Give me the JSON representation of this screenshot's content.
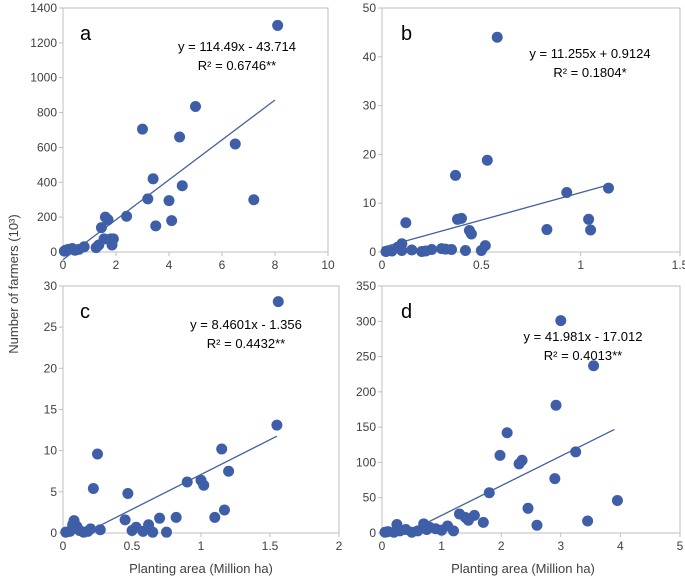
{
  "figure": {
    "ylabel": "Number of farmers (10³)",
    "xlabel": "Planting area (Million ha)"
  },
  "chart_data": [
    {
      "type": "scatter",
      "panel": "a",
      "equation": "y = 114.49x - 43.714",
      "r2": "R² = 0.6746**",
      "xlim": [
        0,
        10
      ],
      "ylim": [
        0,
        1400
      ],
      "xticks": [
        0,
        2,
        4,
        6,
        8,
        10
      ],
      "yticks": [
        0,
        200,
        400,
        600,
        800,
        1000,
        1200,
        1400
      ],
      "x": [
        0.05,
        0.1,
        0.2,
        0.35,
        0.45,
        0.6,
        0.8,
        1.25,
        1.35,
        1.45,
        1.55,
        1.6,
        1.7,
        1.8,
        1.85,
        1.9,
        2.4,
        3.0,
        3.2,
        3.4,
        3.5,
        4.0,
        4.1,
        4.4,
        4.5,
        5.0,
        6.5,
        7.2,
        8.1
      ],
      "y": [
        5,
        10,
        15,
        20,
        10,
        15,
        30,
        25,
        40,
        140,
        75,
        200,
        185,
        75,
        40,
        75,
        205,
        705,
        305,
        420,
        150,
        295,
        180,
        660,
        380,
        835,
        620,
        300,
        1300
      ],
      "fit": {
        "slope": 114.49,
        "intercept": -43.714,
        "xrange": [
          0,
          8
        ]
      },
      "point_color": "#3e5ea8",
      "line_color": "#44619e"
    },
    {
      "type": "scatter",
      "panel": "b",
      "equation": "y = 11.255x + 0.9124",
      "r2": "R² = 0.1804*",
      "xlim": [
        0,
        1.5
      ],
      "ylim": [
        0,
        50
      ],
      "xticks": [
        0,
        0.5,
        1,
        1.5
      ],
      "yticks": [
        0,
        10,
        20,
        30,
        40,
        50
      ],
      "x": [
        0.02,
        0.05,
        0.08,
        0.1,
        0.1,
        0.12,
        0.15,
        0.2,
        0.22,
        0.25,
        0.3,
        0.32,
        0.35,
        0.37,
        0.38,
        0.4,
        0.42,
        0.44,
        0.45,
        0.5,
        0.52,
        0.53,
        0.58,
        0.83,
        0.93,
        1.04,
        1.05,
        1.14
      ],
      "y": [
        0.1,
        0.2,
        1.0,
        1.7,
        0.3,
        6.0,
        0.4,
        0.1,
        0.2,
        0.5,
        0.7,
        0.6,
        0.5,
        15.7,
        6.7,
        6.9,
        0.3,
        4.4,
        3.7,
        0.3,
        1.3,
        18.8,
        44.0,
        4.6,
        12.2,
        6.7,
        4.5,
        13.1
      ],
      "fit": {
        "slope": 11.255,
        "intercept": 0.9124,
        "xrange": [
          0,
          1.15
        ]
      },
      "point_color": "#3e5ea8",
      "line_color": "#44619e"
    },
    {
      "type": "scatter",
      "panel": "c",
      "equation": "y = 8.4601x - 1.356",
      "r2": "R² = 0.4432**",
      "xlim": [
        0,
        2
      ],
      "ylim": [
        0,
        30
      ],
      "xticks": [
        0,
        0.5,
        1,
        1.5,
        2
      ],
      "yticks": [
        0,
        5,
        10,
        15,
        20,
        25,
        30
      ],
      "x": [
        0.02,
        0.05,
        0.07,
        0.08,
        0.1,
        0.12,
        0.15,
        0.18,
        0.2,
        0.22,
        0.25,
        0.27,
        0.45,
        0.47,
        0.5,
        0.53,
        0.58,
        0.62,
        0.65,
        0.7,
        0.75,
        0.82,
        0.9,
        1.0,
        1.02,
        1.1,
        1.15,
        1.17,
        1.2,
        1.55,
        1.56
      ],
      "y": [
        0.1,
        0.2,
        1.0,
        1.5,
        0.8,
        0.3,
        0.1,
        0.2,
        0.5,
        5.4,
        9.6,
        0.4,
        1.6,
        4.8,
        0.3,
        0.7,
        0.2,
        1.0,
        0.1,
        1.8,
        0.1,
        1.9,
        6.2,
        6.4,
        5.8,
        1.9,
        10.2,
        2.8,
        7.5,
        13.1,
        28.1
      ],
      "fit": {
        "slope": 8.4601,
        "intercept": -1.356,
        "xrange": [
          0.28,
          1.55
        ]
      },
      "point_color": "#3e5ea8",
      "line_color": "#44619e"
    },
    {
      "type": "scatter",
      "panel": "d",
      "equation": "y = 41.981x - 17.012",
      "r2": "R² = 0.4013**",
      "xlim": [
        0,
        5
      ],
      "ylim": [
        0,
        350
      ],
      "xticks": [
        0,
        1,
        2,
        3,
        4,
        5
      ],
      "yticks": [
        0,
        50,
        100,
        150,
        200,
        250,
        300,
        350
      ],
      "x": [
        0.05,
        0.1,
        0.2,
        0.25,
        0.3,
        0.4,
        0.5,
        0.6,
        0.7,
        0.75,
        0.8,
        0.9,
        1.0,
        1.1,
        1.2,
        1.3,
        1.4,
        1.45,
        1.55,
        1.7,
        1.8,
        1.98,
        2.1,
        2.3,
        2.35,
        2.45,
        2.6,
        2.9,
        2.92,
        3.0,
        3.25,
        3.45,
        3.55,
        3.95
      ],
      "y": [
        1,
        2,
        1,
        12,
        3,
        5,
        1,
        3,
        13,
        5,
        8,
        6,
        4,
        10,
        3,
        27,
        22,
        18,
        25,
        15,
        57,
        110,
        142,
        98,
        103,
        35,
        11,
        77,
        181,
        301,
        115,
        17,
        237,
        46
      ],
      "fit": {
        "slope": 41.981,
        "intercept": -17.012,
        "xrange": [
          0.41,
          3.9
        ]
      },
      "point_color": "#3e5ea8",
      "line_color": "#44619e"
    }
  ]
}
